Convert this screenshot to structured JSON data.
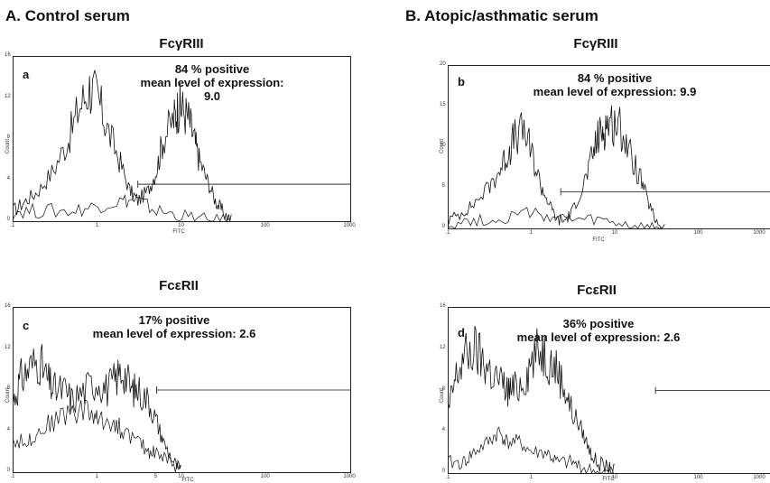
{
  "section_a": {
    "title": "A. Control serum"
  },
  "section_b": {
    "title": "B. Atopic/asthmatic serum"
  },
  "chart_data": [
    {
      "type": "area",
      "panel": "a",
      "title": "FcγRIII",
      "stat_line1": "84 % positive",
      "stat_line2": "mean level of expression: 9.0",
      "xlabel": "FITC",
      "ylabel": "Count",
      "xscale": "log",
      "xlim": [
        0.1,
        1000
      ],
      "ylim": [
        0,
        16
      ],
      "xticks": [
        ".1",
        "1",
        "10",
        "100",
        "1000"
      ],
      "yticks": [
        "0",
        "4",
        "8",
        "12",
        "16"
      ],
      "gate_level": 3.6,
      "gate_start": 3,
      "series": [
        {
          "x": [
            0.1,
            0.14,
            0.2,
            0.3,
            0.45,
            0.6,
            0.8,
            1,
            1.3,
            1.8,
            2.4,
            3,
            4,
            5,
            6,
            8,
            9,
            10,
            12,
            14,
            16,
            20,
            25,
            30,
            40
          ],
          "y": [
            1,
            2,
            3,
            5,
            8,
            11,
            13,
            12,
            9,
            6,
            3,
            2,
            3,
            5,
            8,
            10,
            11,
            11,
            10,
            8,
            6,
            4,
            2,
            1,
            0
          ]
        },
        {
          "x": [
            0.1,
            0.2,
            0.5,
            1,
            2,
            3,
            5,
            10,
            20,
            40
          ],
          "y": [
            1,
            1,
            1,
            1.5,
            2,
            2,
            1,
            0.5,
            0,
            0
          ]
        }
      ]
    },
    {
      "type": "area",
      "panel": "b",
      "title": "FcγRIII",
      "stat_line1": "84 % positive",
      "stat_line2": "mean level of expression: 9.9",
      "xlabel": "FITC",
      "ylabel": "Count",
      "xscale": "log",
      "xlim": [
        0.1,
        1000
      ],
      "ylim": [
        0,
        20
      ],
      "xticks": [
        ".1",
        "1",
        "10",
        "100",
        "1000"
      ],
      "yticks": [
        "0",
        "5",
        "10",
        "15",
        "20"
      ],
      "gate_level": 4.5,
      "gate_start": 2.2,
      "series": [
        {
          "x": [
            0.1,
            0.15,
            0.2,
            0.3,
            0.4,
            0.5,
            0.6,
            0.8,
            1,
            1.3,
            1.6,
            2,
            2.5,
            3,
            4,
            5,
            6,
            7,
            8,
            10,
            12,
            15,
            20,
            25,
            30,
            40
          ],
          "y": [
            1,
            2,
            3,
            5,
            7,
            9,
            11,
            12,
            9,
            5,
            3,
            1,
            1,
            2,
            5,
            8,
            11,
            12,
            13,
            13,
            12,
            9,
            6,
            3,
            1,
            0
          ]
        },
        {
          "x": [
            0.1,
            0.2,
            0.4,
            0.8,
            1.5,
            3,
            6,
            12,
            24,
            40
          ],
          "y": [
            0.5,
            1,
            1,
            2,
            1.5,
            1,
            1,
            0.5,
            0,
            0
          ]
        }
      ]
    },
    {
      "type": "area",
      "panel": "c",
      "title": "FcεRII",
      "stat_line1": "17% positive",
      "stat_line2": "mean level of expression: 2.6",
      "xlabel": "FITC",
      "ylabel": "Count",
      "xscale": "log",
      "xlim": [
        0.1,
        1000
      ],
      "ylim": [
        0,
        16
      ],
      "xticks": [
        ".1",
        "1",
        "5",
        "10",
        "100",
        "1000"
      ],
      "yticks": [
        "0",
        "4",
        "8",
        "12",
        "16"
      ],
      "gate_level": 8,
      "gate_start": 5,
      "series": [
        {
          "x": [
            0.1,
            0.12,
            0.15,
            0.2,
            0.25,
            0.3,
            0.4,
            0.5,
            0.7,
            1,
            1.3,
            1.6,
            2,
            2.5,
            3,
            4,
            5,
            6,
            8,
            10
          ],
          "y": [
            7,
            9,
            10,
            11,
            9,
            8,
            8,
            7,
            8,
            9,
            8,
            9,
            10,
            8,
            8,
            7,
            5,
            3,
            1,
            0
          ]
        },
        {
          "x": [
            0.1,
            0.15,
            0.2,
            0.3,
            0.5,
            0.8,
            1,
            1.5,
            2,
            3,
            4,
            5,
            7,
            10
          ],
          "y": [
            3,
            3,
            4,
            5,
            6,
            6,
            5,
            5,
            4,
            3,
            2,
            2,
            1,
            0
          ]
        }
      ]
    },
    {
      "type": "area",
      "panel": "d",
      "title": "FcεRII",
      "stat_line1": "36% positive",
      "stat_line2": "mean level of expression: 2.6",
      "xlabel": "FITC",
      "ylabel": "Count",
      "xscale": "log",
      "xlim": [
        0.1,
        1000
      ],
      "ylim": [
        0,
        16
      ],
      "xticks": [
        ".1",
        "1",
        "10",
        "100",
        "1000"
      ],
      "yticks": [
        "0",
        "4",
        "8",
        "12",
        "16"
      ],
      "gate_level": 8,
      "gate_start": 30,
      "series": [
        {
          "x": [
            0.1,
            0.12,
            0.15,
            0.2,
            0.25,
            0.3,
            0.4,
            0.5,
            0.6,
            0.8,
            1,
            1.3,
            1.6,
            2,
            2.5,
            3,
            4,
            5,
            6,
            8,
            10
          ],
          "y": [
            6,
            9,
            11,
            12,
            11,
            10,
            9,
            8,
            8,
            9,
            11,
            12,
            11,
            10,
            8,
            6,
            4,
            2,
            1,
            0.5,
            0
          ]
        },
        {
          "x": [
            0.1,
            0.15,
            0.2,
            0.3,
            0.4,
            0.5,
            0.7,
            1,
            1.5,
            2,
            3,
            4,
            6,
            10
          ],
          "y": [
            1,
            1,
            2,
            3,
            4,
            3,
            3,
            2,
            2,
            1,
            1,
            0.5,
            0,
            0
          ]
        }
      ]
    }
  ]
}
